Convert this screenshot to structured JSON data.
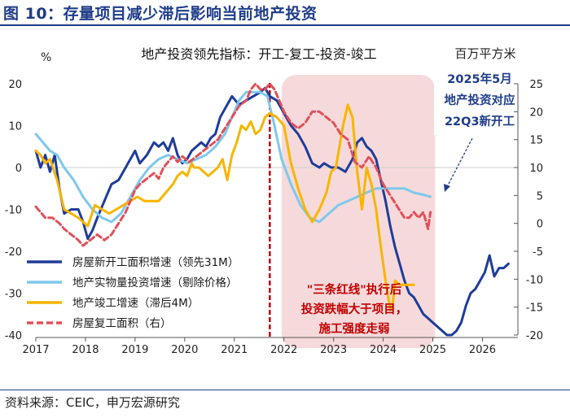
{
  "figure": {
    "title": "图 10：存量项目减少滞后影响当前地产投资",
    "source": "资料来源：CEIC，申万宏源研究"
  },
  "chart_data": {
    "type": "line",
    "title": "地产投资领先指标：开工-复工-投资-竣工",
    "ylabel_left": "%",
    "ylabel_right": "百万平方米",
    "ylim_left": [
      -40,
      20
    ],
    "yticks_left": [
      -40,
      -30,
      -20,
      -10,
      0,
      10,
      20
    ],
    "ylim_right": [
      -20,
      25
    ],
    "yticks_right": [
      -20,
      -15,
      -10,
      -5,
      0,
      5,
      10,
      15,
      20,
      25
    ],
    "xlim": [
      2017.0,
      2027.2
    ],
    "xticks": [
      "2017",
      "2018",
      "2019",
      "2020",
      "2021",
      "2022",
      "2023",
      "2024",
      "2025",
      "2026"
    ],
    "xtick_values": [
      2017.0,
      2018.05,
      2019.1,
      2020.15,
      2021.2,
      2022.25,
      2023.3,
      2024.35,
      2025.4,
      2026.45
    ],
    "shaded_region": {
      "from": 2022.2,
      "to": 2025.45,
      "color": "#f6dadb"
    },
    "vline": {
      "x": 2021.95,
      "color": "#c00000"
    },
    "colors": {
      "dark_blue": "#1f3c99",
      "light_blue": "#7ec8ec",
      "orange": "#f7b500",
      "red": "#e0505a",
      "annotation_red": "#c00000",
      "title_blue": "#1f3c88"
    },
    "series": [
      {
        "name": "房屋新开工面积增速（领先31M）",
        "axis": "left",
        "color": "#1f3c99",
        "style": "solid",
        "x": [
          2017.0,
          2017.1,
          2017.2,
          2017.3,
          2017.4,
          2017.5,
          2017.6,
          2017.75,
          2017.9,
          2018.0,
          2018.1,
          2018.2,
          2018.3,
          2018.45,
          2018.6,
          2018.75,
          2018.9,
          2019.0,
          2019.1,
          2019.2,
          2019.35,
          2019.5,
          2019.6,
          2019.7,
          2019.8,
          2019.9,
          2020.0,
          2020.1,
          2020.2,
          2020.3,
          2020.4,
          2020.5,
          2020.6,
          2020.7,
          2020.8,
          2020.9,
          2021.0,
          2021.15,
          2021.3,
          2021.45,
          2021.6,
          2021.75,
          2021.85,
          2021.95,
          2022.1,
          2022.25,
          2022.4,
          2022.55,
          2022.7,
          2022.85,
          2023.0,
          2023.1,
          2023.25,
          2023.4,
          2023.55,
          2023.7,
          2023.8,
          2023.9,
          2024.0,
          2024.1,
          2024.2,
          2024.3,
          2024.4,
          2024.5,
          2024.6,
          2024.7,
          2024.8,
          2024.9,
          2025.0,
          2025.1,
          2025.2,
          2025.3,
          2025.4,
          2025.5,
          2025.6,
          2025.7,
          2025.8,
          2025.9,
          2026.0,
          2026.1,
          2026.2,
          2026.3,
          2026.4,
          2026.5,
          2026.6,
          2026.7,
          2026.8,
          2026.9,
          2027.0
        ],
        "y": [
          4,
          0,
          3,
          -1,
          3,
          -5,
          -11,
          -10,
          -10,
          -13,
          -17,
          -15,
          -12,
          -8,
          -4,
          -3,
          0,
          2,
          4,
          1,
          3,
          6,
          5,
          6,
          4,
          7,
          3,
          1,
          2,
          4,
          5,
          6,
          5,
          7,
          8,
          12,
          14,
          17,
          15,
          16,
          17,
          18,
          19,
          17,
          16,
          13,
          10,
          8,
          5,
          1,
          0,
          1,
          0,
          0,
          -1,
          2,
          6,
          7,
          5,
          4,
          2,
          -3,
          -8,
          -14,
          -19,
          -23,
          -27,
          -30,
          -31,
          -33,
          -35,
          -36,
          -37,
          -38,
          -39,
          -40,
          -40,
          -39,
          -37,
          -33,
          -30,
          -29,
          -27,
          -25,
          -21,
          -26,
          -24,
          -24,
          -23
        ]
      },
      {
        "name": "地产实物量投资增速（剔除价格）",
        "axis": "left",
        "color": "#7ec8ec",
        "style": "solid",
        "x": [
          2017.0,
          2017.15,
          2017.3,
          2017.45,
          2017.6,
          2017.8,
          2018.0,
          2018.2,
          2018.4,
          2018.6,
          2018.8,
          2019.0,
          2019.2,
          2019.4,
          2019.6,
          2019.8,
          2020.0,
          2020.2,
          2020.4,
          2020.6,
          2020.8,
          2021.0,
          2021.15,
          2021.3,
          2021.45,
          2021.6,
          2021.75,
          2021.9,
          2022.05,
          2022.2,
          2022.4,
          2022.6,
          2022.8,
          2023.0,
          2023.2,
          2023.4,
          2023.6,
          2023.8,
          2024.0,
          2024.2,
          2024.4,
          2024.6,
          2024.8,
          2025.0,
          2025.2,
          2025.35
        ],
        "y": [
          8,
          6,
          4,
          3,
          0,
          -3,
          -7,
          -10,
          -12,
          -13,
          -11,
          -7,
          -3,
          0,
          2,
          3,
          2,
          1,
          2,
          3,
          5,
          8,
          12,
          16,
          18,
          18,
          18,
          17,
          10,
          2,
          -4,
          -9,
          -12,
          -13,
          -11,
          -9,
          -8,
          -7,
          -6,
          -5,
          -5,
          -5,
          -5,
          -6,
          -6.5,
          -7
        ]
      },
      {
        "name": "地产竣工增速（滞后4M）",
        "axis": "left",
        "color": "#f7b500",
        "style": "solid",
        "x": [
          2017.0,
          2017.1,
          2017.2,
          2017.3,
          2017.45,
          2017.6,
          2017.75,
          2017.9,
          2018.0,
          2018.1,
          2018.25,
          2018.4,
          2018.55,
          2018.7,
          2018.85,
          2019.0,
          2019.15,
          2019.3,
          2019.45,
          2019.6,
          2019.75,
          2019.9,
          2020.0,
          2020.1,
          2020.2,
          2020.3,
          2020.35,
          2020.45,
          2020.55,
          2020.65,
          2020.75,
          2020.85,
          2020.95,
          2021.05,
          2021.15,
          2021.25,
          2021.35,
          2021.45,
          2021.55,
          2021.65,
          2021.75,
          2021.85,
          2021.95,
          2022.1,
          2022.25,
          2022.4,
          2022.55,
          2022.7,
          2022.85,
          2023.0,
          2023.15,
          2023.25,
          2023.35,
          2023.5,
          2023.6,
          2023.7,
          2023.8,
          2023.9,
          2024.0,
          2024.1,
          2024.2,
          2024.3,
          2024.4,
          2024.5,
          2024.55,
          2024.6,
          2024.7,
          2024.8,
          2024.9,
          2025.0
        ],
        "y": [
          4,
          3,
          1,
          2,
          -3,
          -10,
          -11,
          -12,
          -13,
          -14,
          -9,
          -10,
          -11,
          -10,
          -9,
          -8,
          -7,
          -8,
          -8,
          -8,
          -6,
          -4,
          -2,
          -1,
          -2,
          1,
          0,
          0,
          -1,
          -2,
          -1,
          0,
          2,
          -3,
          3,
          6,
          10,
          9,
          11,
          8,
          9,
          12,
          13,
          12,
          10,
          1,
          -5,
          -10,
          -13,
          -10,
          -6,
          -1,
          0,
          10,
          15,
          12,
          -1,
          -10,
          0,
          -4,
          -10,
          -19,
          -27,
          -34,
          -33,
          -27,
          -28,
          -28,
          -28,
          -28
        ]
      },
      {
        "name": "房屋复工面积（右）",
        "axis": "right",
        "color": "#e0505a",
        "style": "dashed",
        "x": [
          2017.0,
          2017.1,
          2017.2,
          2017.35,
          2017.5,
          2017.6,
          2017.75,
          2017.9,
          2018.0,
          2018.15,
          2018.3,
          2018.45,
          2018.6,
          2018.75,
          2018.9,
          2019.0,
          2019.1,
          2019.2,
          2019.35,
          2019.5,
          2019.6,
          2019.7,
          2019.8,
          2019.9,
          2020.0,
          2020.1,
          2020.25,
          2020.4,
          2020.55,
          2020.7,
          2020.85,
          2021.0,
          2021.15,
          2021.3,
          2021.45,
          2021.55,
          2021.65,
          2021.75,
          2021.85,
          2021.95,
          2022.05,
          2022.15,
          2022.25,
          2022.4,
          2022.55,
          2022.7,
          2022.85,
          2023.0,
          2023.15,
          2023.3,
          2023.45,
          2023.6,
          2023.75,
          2023.9,
          2024.05,
          2024.2,
          2024.35,
          2024.5,
          2024.65,
          2024.8,
          2024.9,
          2025.0,
          2025.1,
          2025.2,
          2025.3,
          2025.35
        ],
        "y": [
          3,
          2,
          1,
          1,
          0,
          -1,
          -2,
          -3,
          -4,
          -3,
          -2,
          -3,
          -2,
          0,
          2,
          4,
          6,
          7,
          8,
          9,
          8,
          10,
          11,
          12,
          11,
          12,
          11,
          12,
          13,
          14,
          15,
          17,
          19,
          21,
          22,
          24,
          25,
          24,
          24,
          25,
          24,
          22,
          20,
          18,
          17,
          18,
          20,
          20,
          19,
          18,
          16,
          15,
          11,
          10,
          12,
          10,
          7,
          5,
          3,
          1,
          1,
          2,
          1,
          2,
          -1,
          2
        ]
      }
    ],
    "annotations": {
      "top_right": [
        "2025年5月",
        "地产投资对应",
        "22Q3新开工"
      ],
      "shaded": [
        "\"三条红线\"执行后",
        "投资跌幅大于项目，",
        "施工强度走弱"
      ]
    }
  }
}
